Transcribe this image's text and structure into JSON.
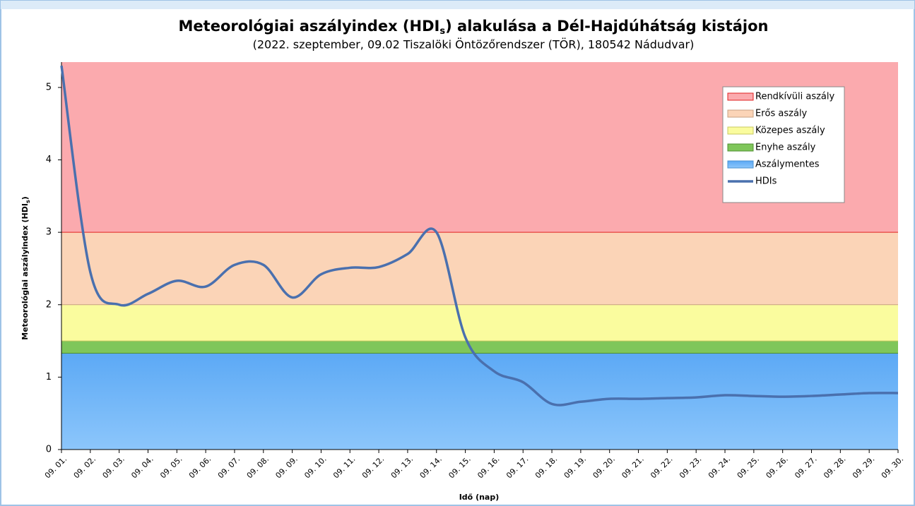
{
  "chart_data": {
    "type": "line",
    "title": [
      "Meteorológiai aszályindex (HDI",
      "s",
      ") alakulása a Dél-Hajdúhátság kistájon"
    ],
    "subtitle": "(2022. szeptember, 09.02 Tiszalöki Öntözőrendszer (TÖR), 180542 Nádudvar)",
    "y_label": [
      "Meteorológiai aszályindex (HDI",
      "s",
      ")"
    ],
    "x_label": "Idő (nap)",
    "categories": [
      "09. 01.",
      "09. 02.",
      "09. 03.",
      "09. 04.",
      "09. 05.",
      "09. 06.",
      "09. 07.",
      "09. 08.",
      "09. 09.",
      "09. 10.",
      "09. 11.",
      "09. 12.",
      "09. 13.",
      "09. 14.",
      "09. 15.",
      "09. 16.",
      "09. 17.",
      "09. 18.",
      "09. 19.",
      "09. 20.",
      "09. 21.",
      "09. 22.",
      "09. 23.",
      "09. 24.",
      "09. 25.",
      "09. 26.",
      "09. 27.",
      "09. 28.",
      "09. 29.",
      "09. 30."
    ],
    "bands": [
      {
        "name": "Rendkívüli aszály",
        "color": "#fbaaae",
        "edge": "#e02020",
        "min": 3
      },
      {
        "name": "Erős aszály",
        "color": "#fbd4b7",
        "edge": "#c8a080",
        "min": 2
      },
      {
        "name": "Közepes aszály",
        "color": "#fafc9e",
        "edge": "#c8c860",
        "min": 1.5
      },
      {
        "name": "Enyhe aszály",
        "color": "#7fc65a",
        "edge": "#4f8f30",
        "min": 1.33
      },
      {
        "name": "Aszálymentes",
        "color": "#6cb4f8",
        "edge": "#4a90d0",
        "min": 0
      }
    ],
    "series": [
      {
        "name": "HDIs",
        "color": "#4a70ae",
        "values": [
          5.3,
          2.45,
          2.0,
          2.15,
          2.33,
          2.25,
          2.55,
          2.55,
          2.1,
          2.42,
          2.51,
          2.52,
          2.7,
          3.0,
          1.55,
          1.08,
          0.93,
          0.63,
          0.66,
          0.7,
          0.7,
          0.71,
          0.72,
          0.75,
          0.74,
          0.73,
          0.74,
          0.76,
          0.78,
          0.78
        ]
      }
    ],
    "ylim": [
      0,
      5.35
    ],
    "yticks": [
      0,
      1,
      2,
      3,
      4,
      5
    ],
    "legend": "upper right"
  }
}
